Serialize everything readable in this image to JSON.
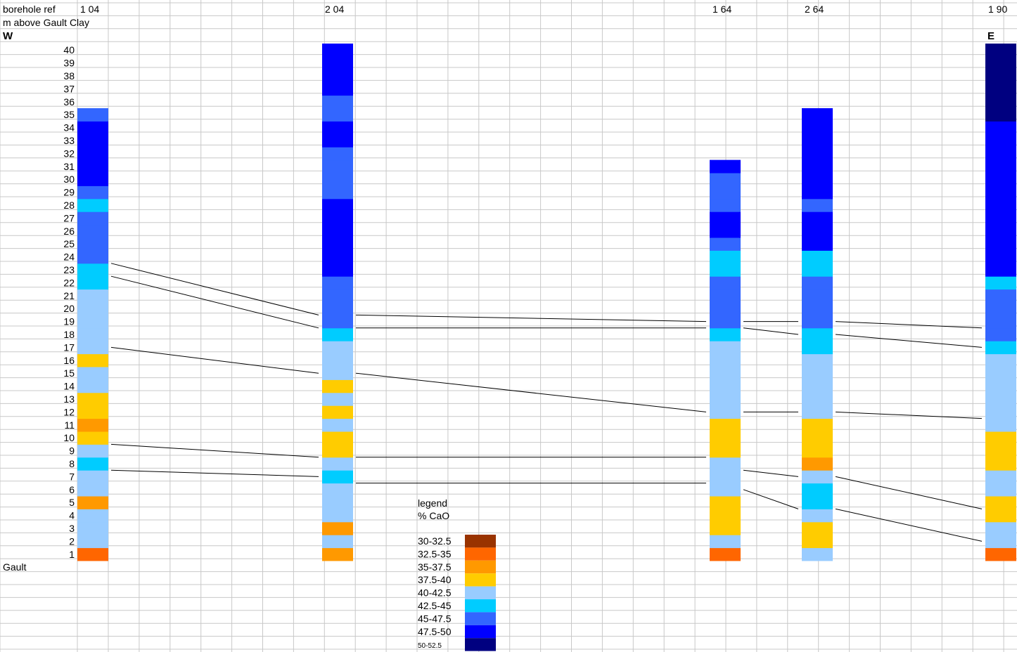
{
  "header": {
    "borehole_ref_label": "borehole ref",
    "yaxis_label": "m above Gault Clay",
    "west_label": "W",
    "east_label": "E",
    "base_label": "Gault"
  },
  "legend": {
    "title": "legend",
    "subtitle": "% CaO",
    "items": [
      {
        "label": "30-32.5",
        "color": "#993300"
      },
      {
        "label": "32.5-35",
        "color": "#ff6600"
      },
      {
        "label": "35-37.5",
        "color": "#ff9900"
      },
      {
        "label": "37.5-40",
        "color": "#ffcc00"
      },
      {
        "label": "40-42.5",
        "color": "#99ccff"
      },
      {
        "label": "42.5-45",
        "color": "#00ccff"
      },
      {
        "label": "45-47.5",
        "color": "#3366ff"
      },
      {
        "label": "47.5-50",
        "color": "#0000ff"
      },
      {
        "label": "50-52.5",
        "color": "#000080"
      }
    ]
  },
  "chart_data": {
    "type": "table",
    "xlabel": "",
    "ylabel": "m above Gault Clay",
    "ylim": [
      0,
      40
    ],
    "ticks": [
      1,
      2,
      3,
      4,
      5,
      6,
      7,
      8,
      9,
      10,
      11,
      12,
      13,
      14,
      15,
      16,
      17,
      18,
      19,
      20,
      21,
      22,
      23,
      24,
      25,
      26,
      27,
      28,
      29,
      30,
      31,
      32,
      33,
      34,
      35,
      36,
      37,
      38,
      39,
      40
    ],
    "grid": true,
    "legend_position": "bottom-center",
    "boreholes": [
      {
        "name": "1 04",
        "cao_class_by_metre": [
          "32.5-35",
          "40-42.5",
          "40-42.5",
          "40-42.5",
          "35-37.5",
          "40-42.5",
          "40-42.5",
          "42.5-45",
          "40-42.5",
          "37.5-40",
          "35-37.5",
          "37.5-40",
          "37.5-40",
          "40-42.5",
          "40-42.5",
          "37.5-40",
          "40-42.5",
          "40-42.5",
          "40-42.5",
          "40-42.5",
          "40-42.5",
          "42.5-45",
          "42.5-45",
          "45-47.5",
          "45-47.5",
          "45-47.5",
          "45-47.5",
          "42.5-45",
          "45-47.5",
          "47.5-50",
          "47.5-50",
          "47.5-50",
          "47.5-50",
          "47.5-50",
          "45-47.5"
        ]
      },
      {
        "name": "2 04",
        "cao_class_by_metre": [
          "35-37.5",
          "40-42.5",
          "35-37.5",
          "40-42.5",
          "40-42.5",
          "40-42.5",
          "42.5-45",
          "40-42.5",
          "37.5-40",
          "37.5-40",
          "40-42.5",
          "37.5-40",
          "40-42.5",
          "37.5-40",
          "40-42.5",
          "40-42.5",
          "40-42.5",
          "42.5-45",
          "45-47.5",
          "45-47.5",
          "45-47.5",
          "45-47.5",
          "47.5-50",
          "47.5-50",
          "47.5-50",
          "47.5-50",
          "47.5-50",
          "47.5-50",
          "45-47.5",
          "45-47.5",
          "45-47.5",
          "45-47.5",
          "47.5-50",
          "47.5-50",
          "45-47.5",
          "45-47.5",
          "47.5-50",
          "47.5-50",
          "47.5-50",
          "47.5-50"
        ]
      },
      {
        "name": "1 64",
        "cao_class_by_metre": [
          "32.5-35",
          "40-42.5",
          "37.5-40",
          "37.5-40",
          "37.5-40",
          "40-42.5",
          "40-42.5",
          "40-42.5",
          "37.5-40",
          "37.5-40",
          "37.5-40",
          "40-42.5",
          "40-42.5",
          "40-42.5",
          "40-42.5",
          "40-42.5",
          "40-42.5",
          "42.5-45",
          "45-47.5",
          "45-47.5",
          "45-47.5",
          "45-47.5",
          "42.5-45",
          "42.5-45",
          "45-47.5",
          "47.5-50",
          "47.5-50",
          "45-47.5",
          "45-47.5",
          "45-47.5",
          "47.5-50"
        ]
      },
      {
        "name": "2 64",
        "cao_class_by_metre": [
          "40-42.5",
          "37.5-40",
          "37.5-40",
          "40-42.5",
          "42.5-45",
          "42.5-45",
          "40-42.5",
          "35-37.5",
          "37.5-40",
          "37.5-40",
          "37.5-40",
          "40-42.5",
          "40-42.5",
          "40-42.5",
          "40-42.5",
          "40-42.5",
          "42.5-45",
          "42.5-45",
          "45-47.5",
          "45-47.5",
          "45-47.5",
          "45-47.5",
          "42.5-45",
          "42.5-45",
          "47.5-50",
          "47.5-50",
          "47.5-50",
          "45-47.5",
          "47.5-50",
          "47.5-50",
          "47.5-50",
          "47.5-50",
          "47.5-50",
          "47.5-50",
          "47.5-50"
        ]
      },
      {
        "name": "1 90",
        "cao_class_by_metre": [
          "32.5-35",
          "40-42.5",
          "40-42.5",
          "37.5-40",
          "37.5-40",
          "40-42.5",
          "40-42.5",
          "37.5-40",
          "37.5-40",
          "37.5-40",
          "40-42.5",
          "40-42.5",
          "40-42.5",
          "40-42.5",
          "40-42.5",
          "40-42.5",
          "42.5-45",
          "45-47.5",
          "45-47.5",
          "45-47.5",
          "45-47.5",
          "42.5-45",
          "47.5-50",
          "47.5-50",
          "47.5-50",
          "47.5-50",
          "47.5-50",
          "47.5-50",
          "47.5-50",
          "47.5-50",
          "47.5-50",
          "47.5-50",
          "47.5-50",
          "47.5-50",
          "50-52.5",
          "50-52.5",
          "50-52.5",
          "50-52.5",
          "50-52.5",
          "50-52.5"
        ]
      }
    ],
    "correlation_lines": [
      [
        [
          0,
          23
        ],
        [
          1,
          19
        ]
      ],
      [
        [
          0,
          22
        ],
        [
          1,
          18
        ]
      ],
      [
        [
          1,
          19
        ],
        [
          2,
          18.5
        ],
        [
          3,
          18.5
        ],
        [
          4,
          18
        ]
      ],
      [
        [
          1,
          18
        ],
        [
          2,
          18
        ]
      ],
      [
        [
          2,
          18
        ],
        [
          3,
          17.5
        ],
        [
          4,
          16.5
        ]
      ],
      [
        [
          0,
          16.5
        ],
        [
          1,
          14.5
        ],
        [
          2,
          11.5
        ],
        [
          3,
          11.5
        ],
        [
          4,
          11
        ]
      ],
      [
        [
          0,
          9
        ],
        [
          1,
          8
        ]
      ],
      [
        [
          1,
          8
        ],
        [
          2,
          8
        ]
      ],
      [
        [
          0,
          7
        ],
        [
          1,
          6.5
        ]
      ],
      [
        [
          1,
          6
        ],
        [
          2,
          6
        ]
      ],
      [
        [
          2,
          7
        ],
        [
          3,
          6.5
        ],
        [
          4,
          4
        ]
      ],
      [
        [
          2,
          5.5
        ],
        [
          3,
          4
        ],
        [
          4,
          1.5
        ]
      ]
    ]
  }
}
